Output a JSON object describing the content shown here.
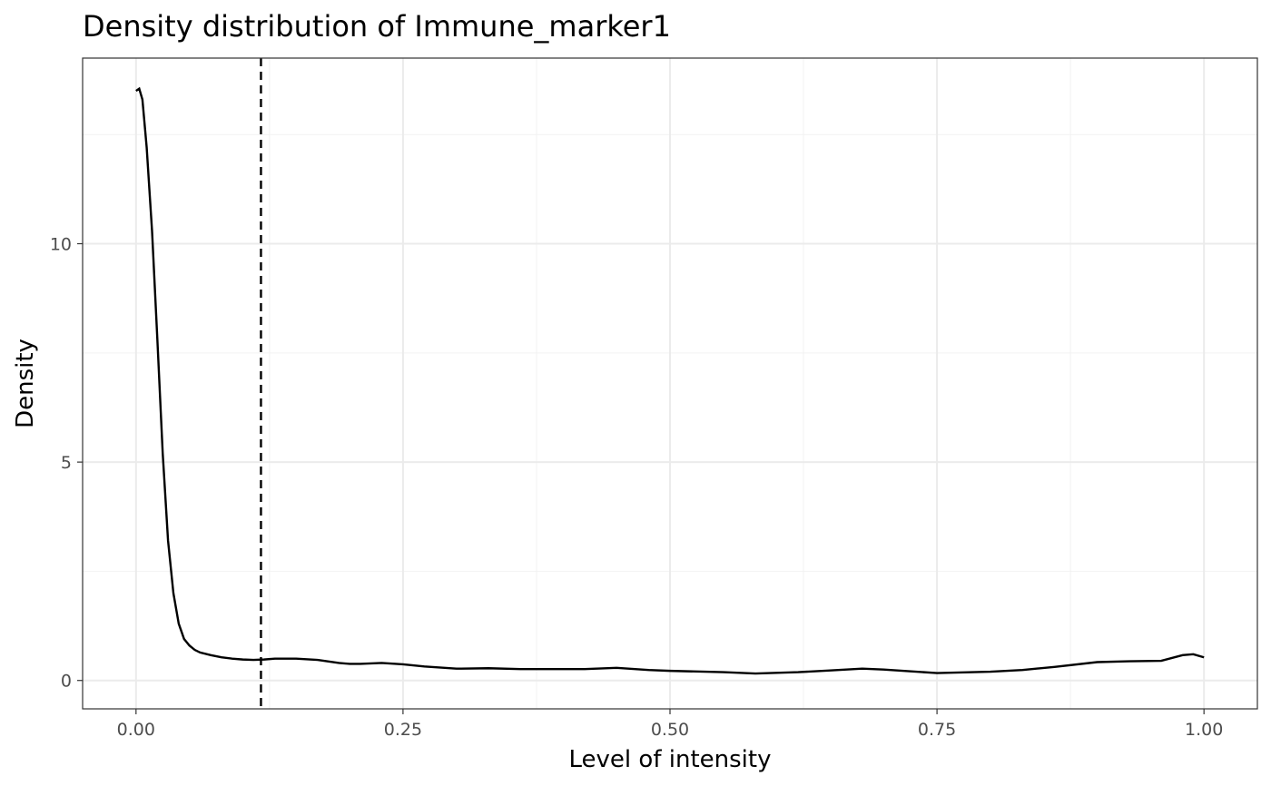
{
  "chart_data": {
    "type": "line",
    "title": "Density distribution of Immune_marker1",
    "xlabel": "Level of intensity",
    "ylabel": "Density",
    "xlim": [
      -0.05,
      1.05
    ],
    "ylim": [
      -0.65,
      14.25
    ],
    "x_ticks": [
      0,
      0.25,
      0.5,
      0.75,
      1
    ],
    "x_tick_labels": [
      "0.00",
      "0.25",
      "0.50",
      "0.75",
      "1.00"
    ],
    "y_ticks": [
      0,
      5,
      10
    ],
    "y_tick_labels": [
      "0",
      "5",
      "10"
    ],
    "x_minor_ticks": [
      0.125,
      0.375,
      0.625,
      0.875
    ],
    "y_minor_ticks": [
      2.5,
      7.5,
      12.5
    ],
    "grid": true,
    "threshold_x": 0.117,
    "series": [
      {
        "color": "#000000",
        "x": [
          0.0,
          0.003,
          0.006,
          0.01,
          0.015,
          0.02,
          0.025,
          0.03,
          0.035,
          0.04,
          0.045,
          0.05,
          0.055,
          0.06,
          0.07,
          0.08,
          0.09,
          0.1,
          0.11,
          0.12,
          0.13,
          0.15,
          0.17,
          0.19,
          0.2,
          0.21,
          0.23,
          0.25,
          0.27,
          0.3,
          0.33,
          0.36,
          0.4,
          0.42,
          0.45,
          0.48,
          0.5,
          0.55,
          0.58,
          0.62,
          0.65,
          0.68,
          0.7,
          0.75,
          0.8,
          0.83,
          0.86,
          0.9,
          0.93,
          0.96,
          0.98,
          0.99,
          1.0
        ],
        "y": [
          13.5,
          13.55,
          13.3,
          12.2,
          10.3,
          7.8,
          5.2,
          3.2,
          2.0,
          1.3,
          0.95,
          0.8,
          0.7,
          0.64,
          0.58,
          0.53,
          0.5,
          0.48,
          0.47,
          0.48,
          0.5,
          0.5,
          0.47,
          0.4,
          0.38,
          0.38,
          0.4,
          0.37,
          0.32,
          0.27,
          0.28,
          0.26,
          0.26,
          0.26,
          0.29,
          0.24,
          0.22,
          0.19,
          0.16,
          0.19,
          0.23,
          0.27,
          0.25,
          0.17,
          0.2,
          0.24,
          0.31,
          0.42,
          0.44,
          0.45,
          0.58,
          0.6,
          0.53
        ]
      }
    ]
  }
}
